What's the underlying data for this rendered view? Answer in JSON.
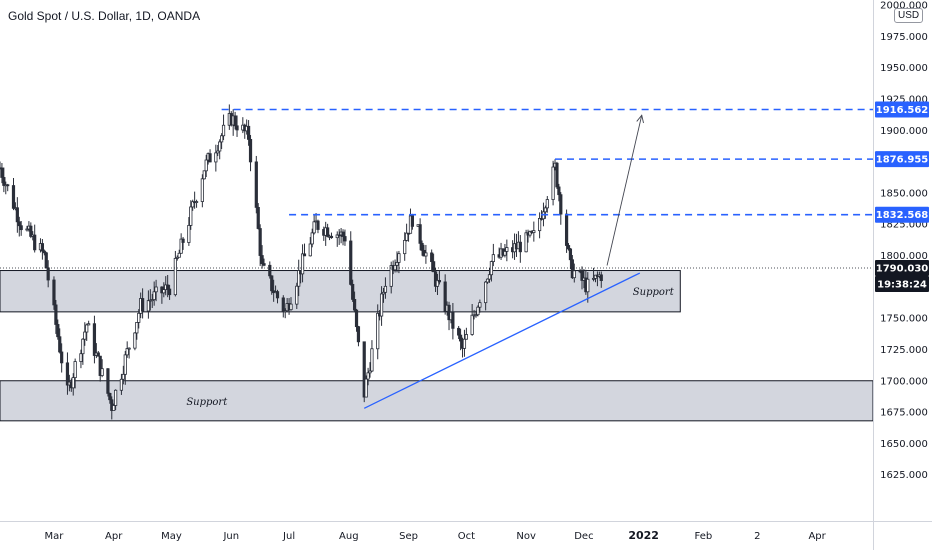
{
  "header": {
    "title": "Gold Spot / U.S. Dollar, 1D, OANDA",
    "currency": "USD"
  },
  "chart_data": {
    "type": "candlestick",
    "title": "Gold Spot / U.S. Dollar, 1D, OANDA",
    "ylim": [
      1600,
      2000
    ],
    "x_domain": [
      "2021-02-01",
      "2022-04-30"
    ],
    "y_ticks": [
      2000.0,
      1975.0,
      1950.0,
      1925.0,
      1900.0,
      1875.0,
      1850.0,
      1825.0,
      1800.0,
      1775.0,
      1750.0,
      1725.0,
      1700.0,
      1675.0,
      1650.0,
      1625.0
    ],
    "y_tick_labels": [
      "2000.000",
      "1975.000",
      "1950.000",
      "1925.000",
      "1900.000",
      "1875.000",
      "1850.000",
      "1825.000",
      "1800.000",
      "1775.000",
      "1750.000",
      "1725.000",
      "1700.000",
      "1675.000",
      "1650.000",
      "1625.000"
    ],
    "x_ticks": [
      {
        "label": "Mar",
        "date": "2021-03-01"
      },
      {
        "label": "Apr",
        "date": "2021-04-01"
      },
      {
        "label": "May",
        "date": "2021-05-01"
      },
      {
        "label": "Jun",
        "date": "2021-06-01"
      },
      {
        "label": "Jul",
        "date": "2021-07-01"
      },
      {
        "label": "Aug",
        "date": "2021-08-01"
      },
      {
        "label": "Sep",
        "date": "2021-09-01"
      },
      {
        "label": "Oct",
        "date": "2021-10-01"
      },
      {
        "label": "Nov",
        "date": "2021-11-01"
      },
      {
        "label": "Dec",
        "date": "2021-12-01"
      },
      {
        "label": "2022",
        "date": "2022-01-01",
        "major": true
      },
      {
        "label": "Feb",
        "date": "2022-02-01"
      },
      {
        "label": "2",
        "date": "2022-03-01"
      },
      {
        "label": "Apr",
        "date": "2022-04-01"
      }
    ],
    "price_path": [
      {
        "date": "2021-02-01",
        "price": 1870
      },
      {
        "date": "2021-02-12",
        "price": 1825
      },
      {
        "date": "2021-02-24",
        "price": 1800
      },
      {
        "date": "2021-03-08",
        "price": 1690
      },
      {
        "date": "2021-03-18",
        "price": 1745
      },
      {
        "date": "2021-03-31",
        "price": 1680
      },
      {
        "date": "2021-04-15",
        "price": 1760
      },
      {
        "date": "2021-04-30",
        "price": 1775
      },
      {
        "date": "2021-05-18",
        "price": 1870
      },
      {
        "date": "2021-06-01",
        "price": 1910
      },
      {
        "date": "2021-06-10",
        "price": 1895
      },
      {
        "date": "2021-06-17",
        "price": 1790
      },
      {
        "date": "2021-06-29",
        "price": 1755
      },
      {
        "date": "2021-07-15",
        "price": 1825
      },
      {
        "date": "2021-07-30",
        "price": 1815
      },
      {
        "date": "2021-08-09",
        "price": 1690
      },
      {
        "date": "2021-08-20",
        "price": 1780
      },
      {
        "date": "2021-09-03",
        "price": 1830
      },
      {
        "date": "2021-09-20",
        "price": 1760
      },
      {
        "date": "2021-09-29",
        "price": 1725
      },
      {
        "date": "2021-10-14",
        "price": 1795
      },
      {
        "date": "2021-11-05",
        "price": 1815
      },
      {
        "date": "2021-11-16",
        "price": 1870
      },
      {
        "date": "2021-11-24",
        "price": 1790
      },
      {
        "date": "2021-12-03",
        "price": 1775
      },
      {
        "date": "2021-12-10",
        "price": 1785
      }
    ],
    "support_zones": [
      {
        "label": "Support",
        "from": "2021-02-01",
        "to": "2022-01-20",
        "low": 1755,
        "high": 1788
      },
      {
        "label": "Support",
        "from": "2021-02-01",
        "to": "2022-04-30",
        "low": 1668,
        "high": 1700
      }
    ],
    "resistance_levels": [
      {
        "label": "1916.562",
        "value": 1916.562,
        "from": "2021-05-27"
      },
      {
        "label": "1876.955",
        "value": 1876.955,
        "from": "2021-11-16"
      },
      {
        "label": "1832.568",
        "value": 1832.568,
        "from": "2021-07-01"
      }
    ],
    "trendline": {
      "from": {
        "date": "2021-08-09",
        "price": 1678
      },
      "to": {
        "date": "2021-12-30",
        "price": 1786
      }
    },
    "projection_arrow": {
      "from": {
        "date": "2021-12-13",
        "price": 1792
      },
      "to": {
        "date": "2021-12-31",
        "price": 1912
      }
    },
    "current_price": {
      "value": 1790.03,
      "label": "1790.030",
      "countdown": "19:38:24"
    },
    "grid": true,
    "legend": "none"
  },
  "colors": {
    "bullish": "#26a69a",
    "bearish": "#26302e",
    "candle": "#2a2e39",
    "zone_fill": "#d1d4dc",
    "zone_border": "#131722",
    "resistance": "#2962ff",
    "trendline": "#2962ff",
    "arrow": "#434651",
    "badge_blue": "#2962ff",
    "badge_dark": "#131722"
  }
}
